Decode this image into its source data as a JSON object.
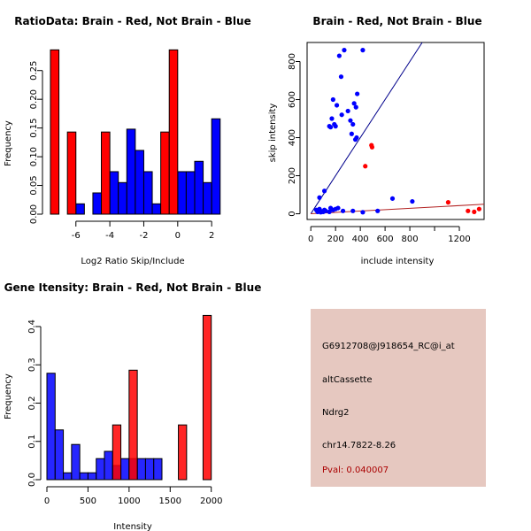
{
  "chart_data": [
    {
      "type": "bar",
      "title": "RatioData: Brain - Red, Not Brain - Blue",
      "xlabel": "Log2 Ratio Skip/Include",
      "ylabel": "Frequency",
      "xlim": [
        -7.5,
        2.2
      ],
      "ylim": [
        0,
        0.285
      ],
      "xticks": [
        -6,
        -4,
        -2,
        0,
        2
      ],
      "yticks": [
        0.0,
        0.05,
        0.1,
        0.15,
        0.2,
        0.25
      ],
      "series": [
        {
          "name": "Not Brain",
          "color": "#0000ff",
          "bins": [
            [
              -6.0,
              -5.5,
              0.018
            ],
            [
              -5.0,
              -4.5,
              0.037
            ],
            [
              -4.5,
              -4.0,
              0.018
            ],
            [
              -4.0,
              -3.5,
              0.074
            ],
            [
              -3.5,
              -3.0,
              0.055
            ],
            [
              -3.0,
              -2.5,
              0.148
            ],
            [
              -2.5,
              -2.0,
              0.111
            ],
            [
              -2.0,
              -1.5,
              0.074
            ],
            [
              -1.5,
              -1.0,
              0.018
            ],
            [
              -1.0,
              -0.5,
              0.018
            ],
            [
              0.0,
              0.5,
              0.074
            ],
            [
              0.5,
              1.0,
              0.074
            ],
            [
              1.0,
              1.5,
              0.092
            ],
            [
              1.5,
              2.0,
              0.055
            ],
            [
              2.0,
              2.5,
              0.166
            ]
          ]
        },
        {
          "name": "Brain",
          "color": "#ff0000",
          "bins": [
            [
              -7.5,
              -7.0,
              0.286
            ],
            [
              -6.5,
              -6.0,
              0.143
            ],
            [
              -4.5,
              -4.0,
              0.143
            ],
            [
              -1.0,
              -0.5,
              0.143
            ],
            [
              -0.5,
              0.0,
              0.286
            ]
          ]
        }
      ]
    },
    {
      "type": "scatter",
      "title": "Brain - Red, Not Brain - Blue",
      "xlabel": "include intensity",
      "ylabel": "skip intensity",
      "xlim": [
        -30,
        1400
      ],
      "ylim": [
        -30,
        900
      ],
      "xticks": [
        0,
        400,
        800,
        1200
      ],
      "xtick_labels": [
        "0",
        "200",
        "400",
        "600",
        "800",
        "",
        "1200"
      ],
      "xtick_label_values": [
        0,
        200,
        400,
        600,
        800,
        1000,
        1200
      ],
      "yticks": [
        0,
        200,
        400,
        600,
        800
      ],
      "series": [
        {
          "name": "Not Brain",
          "color": "#0000ff",
          "points": [
            [
              45,
              20
            ],
            [
              55,
              10
            ],
            [
              60,
              15
            ],
            [
              70,
              25
            ],
            [
              80,
              8
            ],
            [
              90,
              12
            ],
            [
              100,
              10
            ],
            [
              110,
              20
            ],
            [
              120,
              15
            ],
            [
              150,
              10
            ],
            [
              160,
              30
            ],
            [
              180,
              20
            ],
            [
              200,
              25
            ],
            [
              220,
              30
            ],
            [
              260,
              15
            ],
            [
              340,
              15
            ],
            [
              420,
              8
            ],
            [
              540,
              15
            ],
            [
              70,
              85
            ],
            [
              110,
              120
            ],
            [
              150,
              460
            ],
            [
              160,
              455
            ],
            [
              170,
              500
            ],
            [
              180,
              600
            ],
            [
              190,
              470
            ],
            [
              200,
              460
            ],
            [
              210,
              570
            ],
            [
              230,
              830
            ],
            [
              245,
              720
            ],
            [
              250,
              520
            ],
            [
              270,
              860
            ],
            [
              300,
              540
            ],
            [
              320,
              490
            ],
            [
              330,
              420
            ],
            [
              340,
              470
            ],
            [
              350,
              580
            ],
            [
              360,
              390
            ],
            [
              365,
              560
            ],
            [
              370,
              400
            ],
            [
              375,
              630
            ],
            [
              420,
              860
            ],
            [
              660,
              80
            ],
            [
              820,
              65
            ]
          ],
          "fit_line": [
            [
              0,
              0
            ],
            [
              900,
              900
            ]
          ]
        },
        {
          "name": "Brain",
          "color": "#ff0000",
          "points": [
            [
              440,
              250
            ],
            [
              490,
              360
            ],
            [
              495,
              350
            ],
            [
              1110,
              60
            ],
            [
              1270,
              15
            ],
            [
              1320,
              10
            ],
            [
              1360,
              25
            ]
          ],
          "fit_line": [
            [
              0,
              0
            ],
            [
              1400,
              50
            ]
          ]
        }
      ]
    },
    {
      "type": "bar",
      "title": "Gene Itensity: Brain - Red, Not Brain - Blue",
      "xlabel": "Intensity",
      "ylabel": "Frequency",
      "xlim": [
        0,
        2100
      ],
      "ylim": [
        0,
        0.43
      ],
      "xticks": [
        0,
        500,
        1000,
        1500,
        2000
      ],
      "yticks": [
        0.0,
        0.1,
        0.2,
        0.3,
        0.4
      ],
      "series": [
        {
          "name": "Not Brain",
          "color": "#0000ff",
          "bins": [
            [
              0,
              100,
              0.278
            ],
            [
              100,
              200,
              0.13
            ],
            [
              200,
              300,
              0.018
            ],
            [
              300,
              400,
              0.092
            ],
            [
              400,
              500,
              0.018
            ],
            [
              500,
              600,
              0.018
            ],
            [
              600,
              700,
              0.055
            ],
            [
              700,
              800,
              0.074
            ],
            [
              800,
              900,
              0.037
            ],
            [
              900,
              1000,
              0.055
            ],
            [
              1000,
              1100,
              0.055
            ],
            [
              1100,
              1200,
              0.055
            ],
            [
              1200,
              1300,
              0.055
            ],
            [
              1300,
              1400,
              0.055
            ]
          ]
        },
        {
          "name": "Brain",
          "color": "#ff0000",
          "bins": [
            [
              800,
              900,
              0.143
            ],
            [
              1000,
              1100,
              0.286
            ],
            [
              1600,
              1700,
              0.143
            ],
            [
              1900,
              2000,
              0.429
            ]
          ]
        }
      ]
    }
  ],
  "info": {
    "probe_id": "G6912708@J918654_RC@i_at",
    "event_type": "altCassette",
    "gene": "Ndrg2",
    "location": "chr14.7822-8.26",
    "pval": "Pval: 0.040007",
    "pval_color": "#aa0000"
  }
}
